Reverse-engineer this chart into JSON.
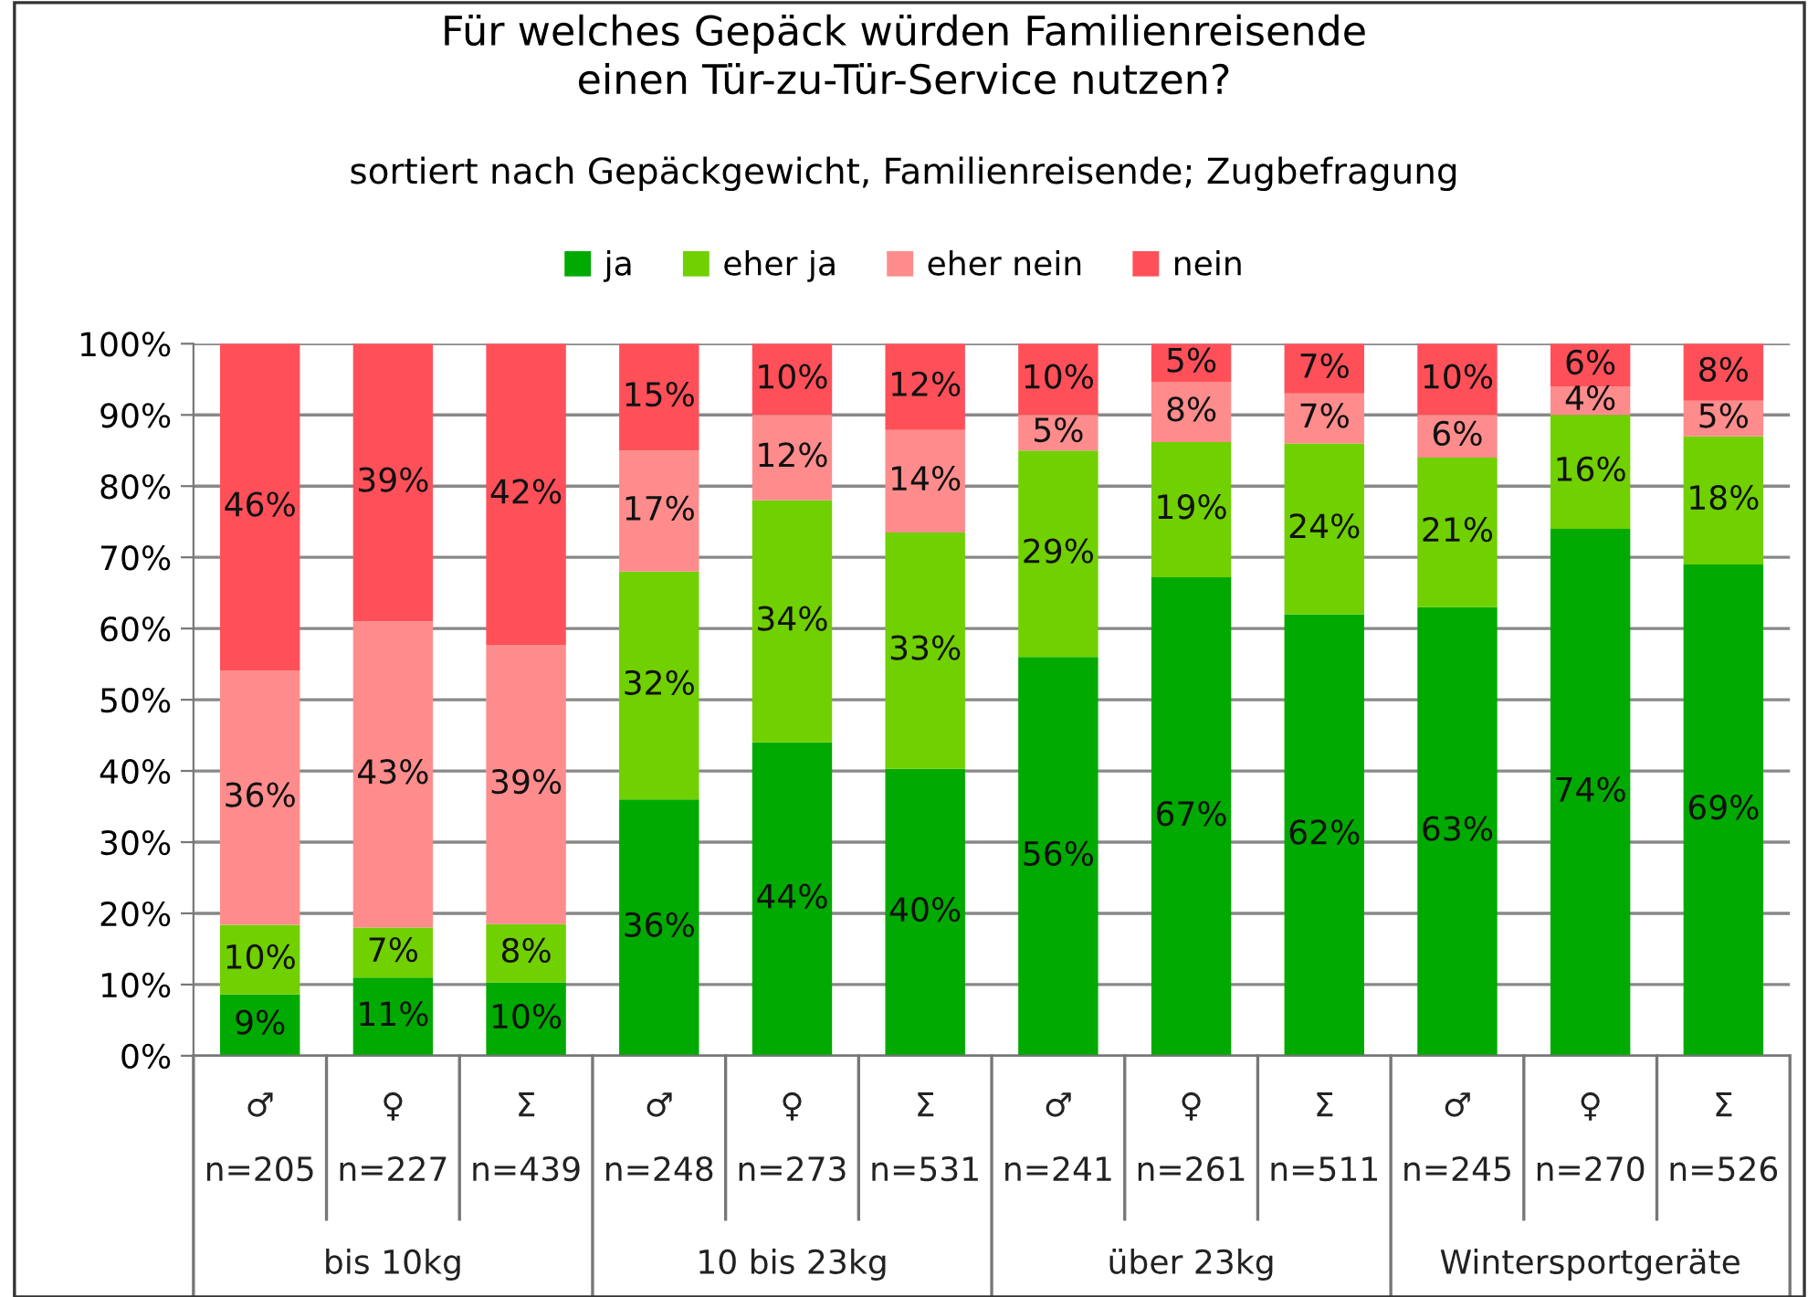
{
  "chart_data": {
    "type": "bar",
    "stacked": true,
    "title": "Für welches Gepäck würden Familienreisende\neinen Tür-zu-Tür-Service nutzen?",
    "subtitle": "sortiert nach Gepäckgewicht, Familienreisende; Zugbefragung",
    "categories": [
      "♂\nn=205",
      "♀\nn=227",
      "Σ\nn=439",
      "♂\nn=248",
      "♀\nn=273",
      "Σ\nn=531",
      "♂\nn=241",
      "♀\nn=261",
      "Σ\nn=511",
      "♂\nn=245",
      "♀\nn=270",
      "Σ\nn=526"
    ],
    "annotations": [
      "bis 10kg",
      "10 bis 23kg",
      "über 23kg",
      "Wintersportgeräte"
    ],
    "series": [
      {
        "name": "ja",
        "color": "#00aa00",
        "values": [
          8.6,
          11,
          10.3,
          36,
          44,
          40.3,
          56,
          67.2,
          62,
          63,
          74,
          69
        ],
        "value_labels": [
          "9%",
          "11%",
          "10%",
          "36%",
          "44%",
          "40%",
          "56%",
          "67%",
          "62%",
          "63%",
          "74%",
          "69%"
        ]
      },
      {
        "name": "eher ja",
        "color": "#70d000",
        "values": [
          9.8,
          7,
          8.2,
          32,
          34,
          33.2,
          29,
          19.0,
          24,
          21,
          16,
          18
        ],
        "value_labels": [
          "10%",
          "7%",
          "8%",
          "32%",
          "34%",
          "33%",
          "29%",
          "19%",
          "24%",
          "21%",
          "16%",
          "18%"
        ]
      },
      {
        "name": "eher nein",
        "color": "#ff8c8c",
        "values": [
          35.7,
          43,
          39.2,
          17,
          12,
          14.4,
          5,
          8.4,
          7,
          6,
          4,
          5
        ],
        "value_labels": [
          "36%",
          "43%",
          "39%",
          "17%",
          "12%",
          "14%",
          "5%",
          "8%",
          "7%",
          "6%",
          "4%",
          "5%"
        ]
      },
      {
        "name": "nein",
        "color": "#ff5059",
        "values": [
          45.9,
          39,
          42.3,
          15,
          10,
          12.1,
          10,
          5.4,
          7,
          10,
          6,
          8
        ],
        "value_labels": [
          "46%",
          "39%",
          "42%",
          "15%",
          "10%",
          "12%",
          "10%",
          "5%",
          "7%",
          "10%",
          "6%",
          "8%"
        ]
      }
    ],
    "ylim": [
      0,
      100
    ],
    "yticks": [
      {
        "value": 0,
        "label": "0%"
      },
      {
        "value": 10,
        "label": "10%"
      },
      {
        "value": 20,
        "label": "20%"
      },
      {
        "value": 30,
        "label": "30%"
      },
      {
        "value": 40,
        "label": "40%"
      },
      {
        "value": 50,
        "label": "50%"
      },
      {
        "value": 60,
        "label": "60%"
      },
      {
        "value": 70,
        "label": "70%"
      },
      {
        "value": 80,
        "label": "80%"
      },
      {
        "value": 90,
        "label": "90%"
      },
      {
        "value": 100,
        "label": "100%"
      }
    ],
    "grid": "y",
    "legend": "top"
  }
}
